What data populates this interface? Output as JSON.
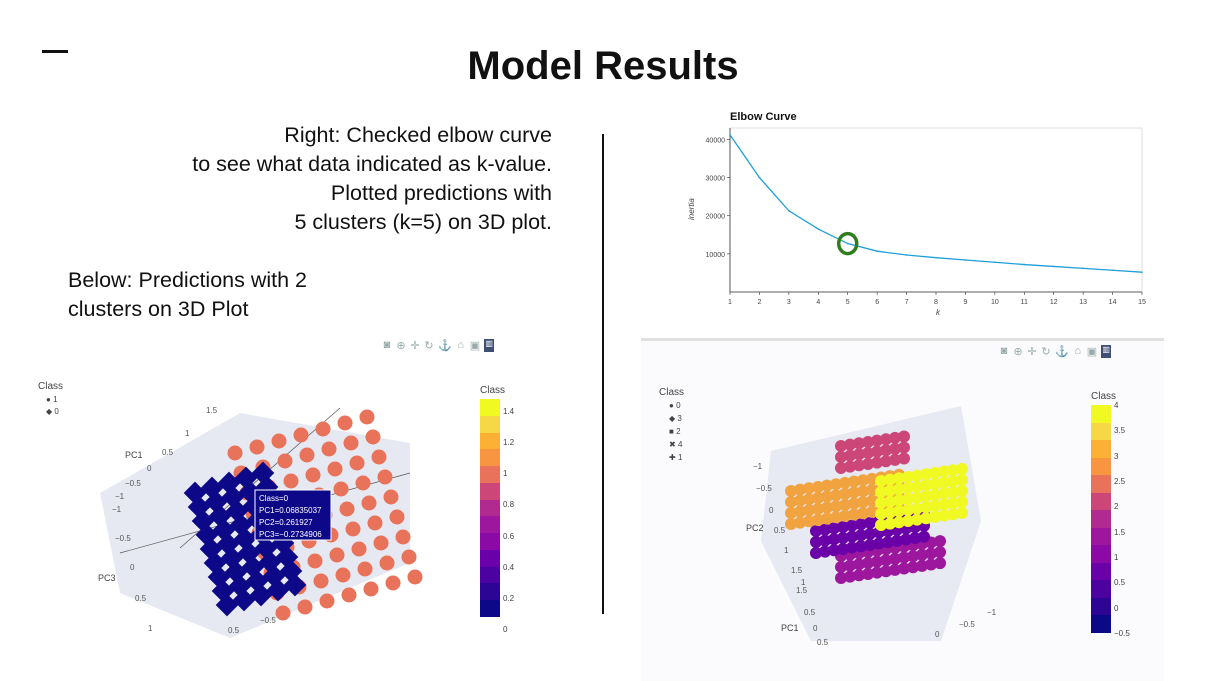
{
  "slide": {
    "title": "Model Results",
    "right_text": [
      "Right: Checked elbow curve",
      "to see what data indicated as k-value.",
      "Plotted predictions with",
      "5 clusters (k=5) on 3D plot."
    ],
    "below_text": [
      "Below: Predictions with 2",
      "clusters on 3D Plot"
    ]
  },
  "left_plot": {
    "legend_title": "Class",
    "legend_items": [
      {
        "symbol": "●",
        "label": "1"
      },
      {
        "symbol": "◆",
        "label": "0"
      }
    ],
    "colorbar_title": "Class",
    "colorbar_ticks": [
      "1.4",
      "1.2",
      "1",
      "0.8",
      "0.6",
      "0.4",
      "0.2",
      "0"
    ],
    "axis_pc1": "PC1",
    "axis_pc3": "PC3",
    "tick_labels": [
      "1.5",
      "1",
      "0.5",
      "0",
      "−0.5",
      "−1",
      "−1",
      "−0.5",
      "0",
      "0.5",
      "1",
      "0.5",
      "−0.5"
    ],
    "tooltip": [
      "Class=0",
      "PC1=0.06835037",
      "PC2=0.261927",
      "PC3=−0.2734906"
    ],
    "colors": {
      "class0": "#0d0887",
      "class1": "#e8735a"
    }
  },
  "right_plot": {
    "legend_title": "Class",
    "legend_items": [
      {
        "symbol": "●",
        "label": "0"
      },
      {
        "symbol": "◆",
        "label": "3"
      },
      {
        "symbol": "■",
        "label": "2"
      },
      {
        "symbol": "✖",
        "label": "4"
      },
      {
        "symbol": "✚",
        "label": "1"
      }
    ],
    "colorbar_title": "Class",
    "colorbar_ticks": [
      "4",
      "3.5",
      "3",
      "2.5",
      "2",
      "1.5",
      "1",
      "0.5",
      "0",
      "−0.5"
    ],
    "axis_pc2": "PC2",
    "axis_pc1": "PC1",
    "tick_labels": [
      "−1",
      "−0.5",
      "0",
      "0.5",
      "1",
      "1.5",
      "1",
      "1.5",
      "0.5",
      "0",
      "0.5",
      "0",
      "−0.5",
      "−1"
    ],
    "colors": {
      "class0": "#6a00a8",
      "class1": "#9c179e",
      "class2": "#cc4778",
      "class3": "#f1a340",
      "class4": "#f0f921",
      "class_low": "#0d0887"
    }
  },
  "modebar_icons": [
    "camera-icon",
    "zoom-icon",
    "pan-icon",
    "orbit-icon",
    "turntable-icon",
    "home-icon",
    "camera-view-icon",
    "plotly-logo-icon"
  ],
  "chart_data": {
    "type": "line",
    "title": "Elbow Curve",
    "xlabel": "k",
    "ylabel": "inertia",
    "x": [
      1,
      2,
      3,
      4,
      5,
      6,
      7,
      8,
      9,
      10,
      11,
      12,
      13,
      14,
      15
    ],
    "values": [
      41200,
      30000,
      21300,
      16500,
      12700,
      10700,
      9700,
      9000,
      8400,
      7800,
      7200,
      6700,
      6200,
      5700,
      5200
    ],
    "xlim": [
      1,
      15
    ],
    "ylim": [
      0,
      43000
    ],
    "yticks": [
      10000,
      20000,
      30000,
      40000
    ],
    "line_color": "#1f9fd9",
    "highlight": {
      "x": 5,
      "color": "#2e7d1e"
    }
  }
}
